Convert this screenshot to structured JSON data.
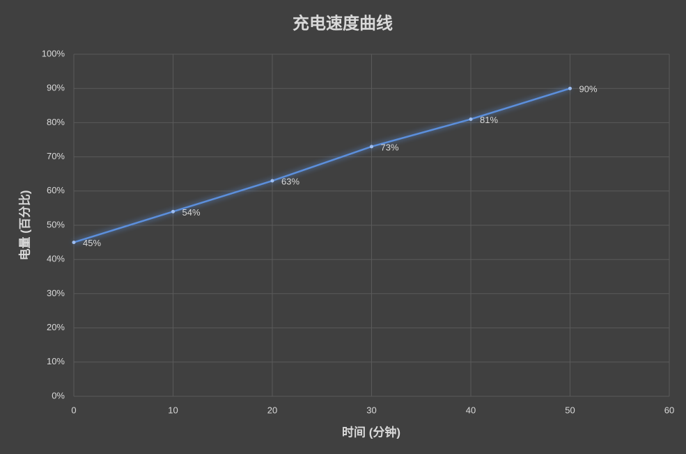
{
  "chart_data": {
    "type": "line",
    "title": "充电速度曲线",
    "x_label": "时间 (分钟)",
    "y_label": "电量 (百分比)",
    "x": [
      0,
      10,
      20,
      30,
      40,
      50
    ],
    "values": [
      45,
      54,
      63,
      73,
      81,
      90
    ],
    "value_labels": [
      "45%",
      "54%",
      "63%",
      "73%",
      "81%",
      "90%"
    ],
    "color": "#5b8fdc",
    "xlim": [
      0,
      60
    ],
    "xticks": [
      0,
      10,
      20,
      30,
      40,
      50,
      60
    ],
    "ylim": [
      0,
      100
    ],
    "yticks": [
      {
        "value": 0,
        "label": "0%"
      },
      {
        "value": 10,
        "label": "10%"
      },
      {
        "value": 20,
        "label": "20%"
      },
      {
        "value": 30,
        "label": "30%"
      },
      {
        "value": 40,
        "label": "40%"
      },
      {
        "value": 50,
        "label": "50%"
      },
      {
        "value": 60,
        "label": "60%"
      },
      {
        "value": 70,
        "label": "70%"
      },
      {
        "value": 80,
        "label": "80%"
      },
      {
        "value": 90,
        "label": "90%"
      },
      {
        "value": 100,
        "label": "100%"
      }
    ],
    "grid": true
  }
}
